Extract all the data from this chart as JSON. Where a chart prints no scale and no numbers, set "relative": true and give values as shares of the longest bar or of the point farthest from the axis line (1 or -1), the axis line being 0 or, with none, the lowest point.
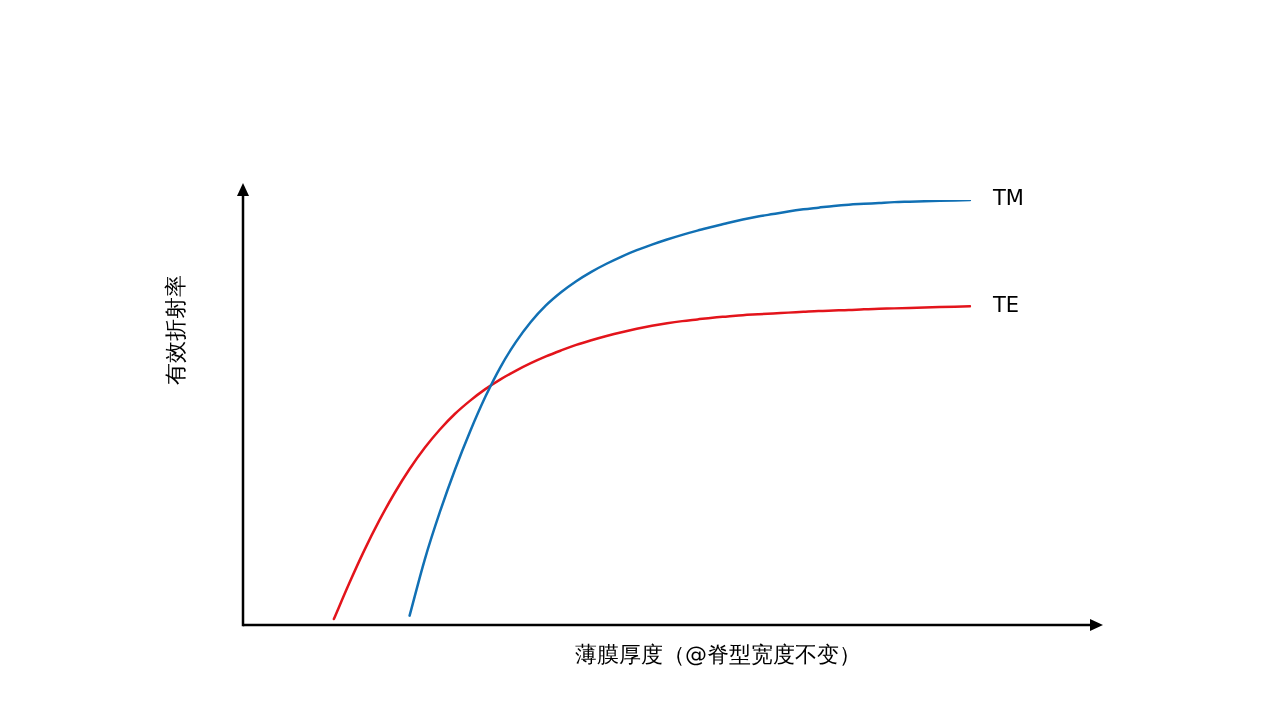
{
  "chart_data": {
    "type": "line",
    "xlabel": "薄膜厚度（@脊型宽度不变）",
    "ylabel": "有效折射率",
    "relative": true,
    "categories": [
      null,
      null,
      null,
      null,
      null,
      null,
      null,
      null,
      null,
      null,
      null,
      null,
      null,
      null,
      null,
      null,
      null,
      null,
      null,
      null,
      null,
      null,
      null,
      null,
      null,
      null,
      null,
      null,
      null,
      null,
      null,
      null,
      null,
      null,
      null,
      null,
      null,
      null,
      null,
      null,
      null,
      null,
      null,
      null,
      null,
      null,
      null,
      null,
      null
    ],
    "series": [
      {
        "name": "TM",
        "color": "#1170b4",
        "values": [
          null,
          null,
          null,
          null,
          null,
          null,
          null,
          null,
          null,
          null,
          null,
          0.022,
          0.154,
          0.266,
          0.366,
          0.456,
          0.537,
          0.607,
          0.665,
          0.713,
          0.752,
          0.783,
          0.809,
          0.831,
          0.85,
          0.867,
          0.882,
          0.895,
          0.907,
          0.918,
          0.928,
          0.937,
          0.946,
          0.954,
          0.961,
          0.967,
          0.973,
          0.978,
          0.982,
          0.986,
          0.989,
          0.991,
          0.993,
          0.995,
          0.996,
          0.997,
          0.998,
          0.999,
          1
        ]
      },
      {
        "name": "TE",
        "color": "#e3141b",
        "values": [
          null,
          null,
          null,
          null,
          null,
          null,
          0.014,
          0.097,
          0.175,
          0.246,
          0.31,
          0.367,
          0.417,
          0.46,
          0.497,
          0.528,
          0.555,
          0.578,
          0.598,
          0.616,
          0.632,
          0.646,
          0.659,
          0.67,
          0.68,
          0.689,
          0.697,
          0.704,
          0.71,
          0.715,
          0.719,
          0.723,
          0.726,
          0.729,
          0.731,
          0.733,
          0.735,
          0.737,
          0.739,
          0.74,
          0.741,
          0.743,
          0.744,
          0.745,
          0.746,
          0.747,
          0.748,
          0.749,
          0.75
        ]
      }
    ]
  }
}
